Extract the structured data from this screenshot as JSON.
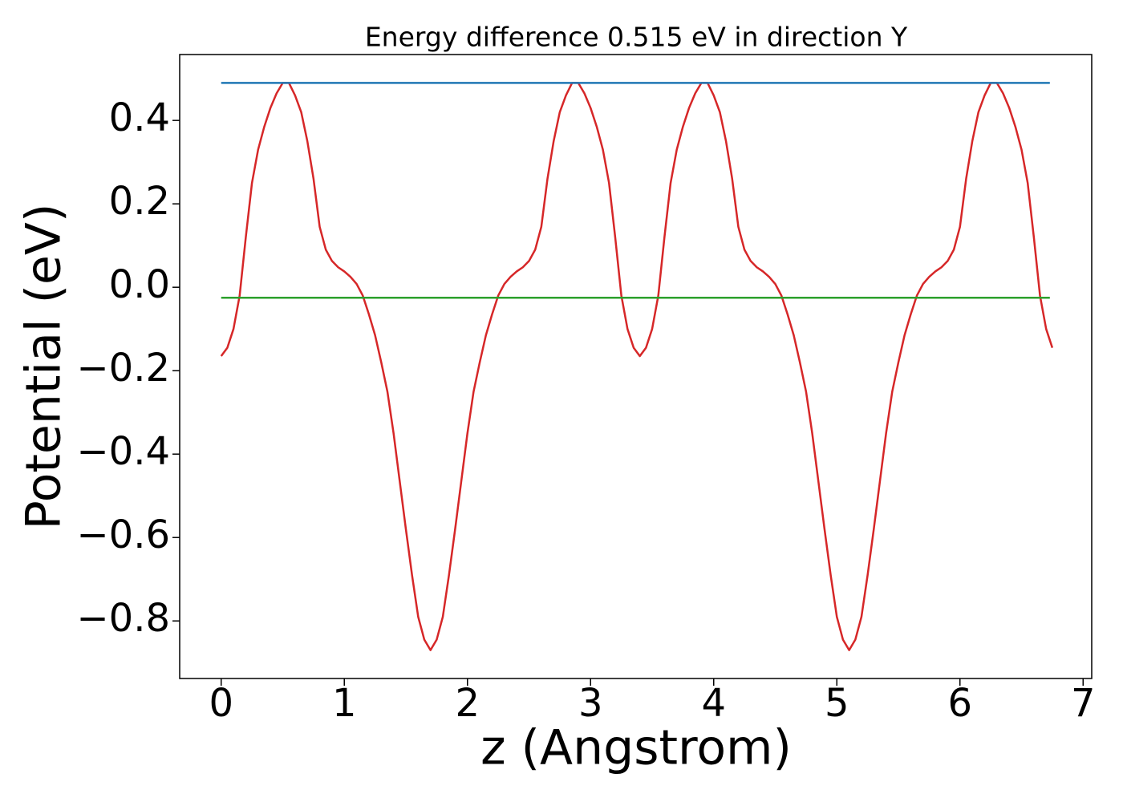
{
  "chart_data": {
    "type": "line",
    "title": "Energy difference 0.515 eV in direction Y",
    "xlabel": "z (Angstrom)",
    "ylabel": "Potential (eV)",
    "xlim": [
      -0.337,
      7.07
    ],
    "ylim": [
      -0.938,
      0.558
    ],
    "xticks": [
      0,
      1,
      2,
      3,
      4,
      5,
      6,
      7
    ],
    "yticks": [
      {
        "value": -0.8,
        "label": "−0.8"
      },
      {
        "value": -0.6,
        "label": "−0.6"
      },
      {
        "value": -0.4,
        "label": "−0.4"
      },
      {
        "value": -0.2,
        "label": "−0.2"
      },
      {
        "value": 0,
        "label": "0.0"
      },
      0.2,
      0.4
    ],
    "series": [
      {
        "color": "#d62728",
        "x": [
          0,
          0.05,
          0.1,
          0.15,
          0.2,
          0.25,
          0.3,
          0.35,
          0.4,
          0.45,
          0.5,
          0.55,
          0.6,
          0.65,
          0.7,
          0.75,
          0.8,
          0.85,
          0.9,
          0.95,
          1,
          1.05,
          1.1,
          1.15,
          1.2,
          1.25,
          1.3,
          1.35,
          1.4,
          1.45,
          1.5,
          1.55,
          1.6,
          1.65,
          1.7,
          1.75,
          1.8,
          1.85,
          1.9,
          1.95,
          2,
          2.05,
          2.1,
          2.15,
          2.2,
          2.25,
          2.3,
          2.35,
          2.4,
          2.45,
          2.5,
          2.55,
          2.6,
          2.65,
          2.7,
          2.75,
          2.8,
          2.85,
          2.9,
          2.95,
          3,
          3.05,
          3.1,
          3.15,
          3.2,
          3.25,
          3.3,
          3.35,
          3.4,
          3.45,
          3.5,
          3.55,
          3.6,
          3.65,
          3.7,
          3.75,
          3.8,
          3.85,
          3.9,
          3.95,
          4,
          4.05,
          4.1,
          4.15,
          4.2,
          4.25,
          4.3,
          4.35,
          4.4,
          4.45,
          4.5,
          4.55,
          4.6,
          4.65,
          4.7,
          4.75,
          4.8,
          4.85,
          4.9,
          4.95,
          5,
          5.05,
          5.1,
          5.15,
          5.2,
          5.25,
          5.3,
          5.35,
          5.4,
          5.45,
          5.5,
          5.55,
          5.6,
          5.65,
          5.7,
          5.75,
          5.8,
          5.85,
          5.9,
          5.95,
          6,
          6.05,
          6.1,
          6.15,
          6.2,
          6.25,
          6.3,
          6.35,
          6.4,
          6.45,
          6.5,
          6.55,
          6.6,
          6.65,
          6.7,
          6.75
        ],
        "values": [
          -0.165,
          -0.145,
          -0.1,
          -0.02,
          0.12,
          0.25,
          0.33,
          0.385,
          0.43,
          0.465,
          0.49,
          0.49,
          0.46,
          0.42,
          0.35,
          0.26,
          0.145,
          0.09,
          0.063,
          0.048,
          0.038,
          0.025,
          0.008,
          -0.02,
          -0.065,
          -0.115,
          -0.18,
          -0.25,
          -0.35,
          -0.465,
          -0.58,
          -0.69,
          -0.79,
          -0.845,
          -0.87,
          -0.845,
          -0.79,
          -0.69,
          -0.58,
          -0.465,
          -0.35,
          -0.25,
          -0.18,
          -0.115,
          -0.065,
          -0.02,
          0.008,
          0.025,
          0.038,
          0.048,
          0.063,
          0.09,
          0.145,
          0.26,
          0.35,
          0.42,
          0.46,
          0.49,
          0.49,
          0.465,
          0.43,
          0.385,
          0.33,
          0.25,
          0.12,
          -0.02,
          -0.1,
          -0.145,
          -0.165,
          -0.145,
          -0.1,
          -0.02,
          0.12,
          0.25,
          0.33,
          0.385,
          0.43,
          0.465,
          0.49,
          0.49,
          0.46,
          0.42,
          0.35,
          0.26,
          0.145,
          0.09,
          0.063,
          0.048,
          0.038,
          0.025,
          0.008,
          -0.02,
          -0.065,
          -0.115,
          -0.18,
          -0.25,
          -0.35,
          -0.465,
          -0.58,
          -0.69,
          -0.79,
          -0.845,
          -0.87,
          -0.845,
          -0.79,
          -0.69,
          -0.58,
          -0.465,
          -0.35,
          -0.25,
          -0.18,
          -0.115,
          -0.065,
          -0.02,
          0.008,
          0.025,
          0.038,
          0.048,
          0.063,
          0.09,
          0.145,
          0.26,
          0.35,
          0.42,
          0.46,
          0.49,
          0.49,
          0.465,
          0.43,
          0.385,
          0.33,
          0.25,
          0.12,
          -0.02,
          -0.1,
          -0.145
        ]
      },
      {
        "color": "#1f77b4",
        "x": [
          0,
          6.73
        ],
        "values": [
          0.49,
          0.49
        ]
      },
      {
        "color": "#2ca02c",
        "x": [
          0,
          6.73
        ],
        "values": [
          -0.025,
          -0.025
        ]
      }
    ]
  }
}
